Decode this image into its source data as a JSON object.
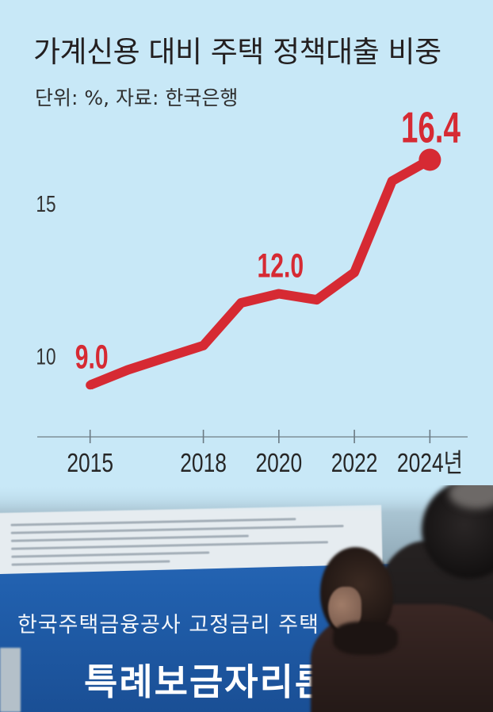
{
  "colors": {
    "background": "#c8e8f7",
    "text": "#231f20",
    "banner": "#1f5fae"
  },
  "chart_data": {
    "type": "line",
    "title": "가계신용 대비 주택 정책대출 비중",
    "subtitle": "단위: %, 자료: 한국은행",
    "x": [
      2015,
      2016,
      2017,
      2018,
      2019,
      2020,
      2021,
      2022,
      2023,
      2024
    ],
    "series": [
      {
        "values": [
          9.0,
          9.5,
          9.9,
          10.3,
          11.7,
          12.0,
          11.8,
          12.7,
          15.7,
          16.4
        ],
        "color": "#d62a33"
      }
    ],
    "x_ticks": [
      2015,
      2018,
      2020,
      2022,
      2024
    ],
    "x_tick_labels": [
      "2015",
      "2018",
      "2020",
      "2022",
      "2024년"
    ],
    "y_ticks": [
      10,
      15
    ],
    "y_tick_labels": [
      "10",
      "15"
    ],
    "data_labels": [
      {
        "x": 2015,
        "y": 9.0,
        "text": "9.0"
      },
      {
        "x": 2020,
        "y": 12.0,
        "text": "12.0"
      },
      {
        "x": 2024,
        "y": 16.4,
        "text": "16.4"
      }
    ],
    "xlim": [
      2013.6,
      2025.0
    ],
    "ylim": [
      7.3,
      18.0
    ],
    "grid": false,
    "legend": "none"
  },
  "photo": {
    "banner_line1": "한국주택금융공사 고정금리 주택",
    "banner_line2": "특례보금자리론"
  }
}
